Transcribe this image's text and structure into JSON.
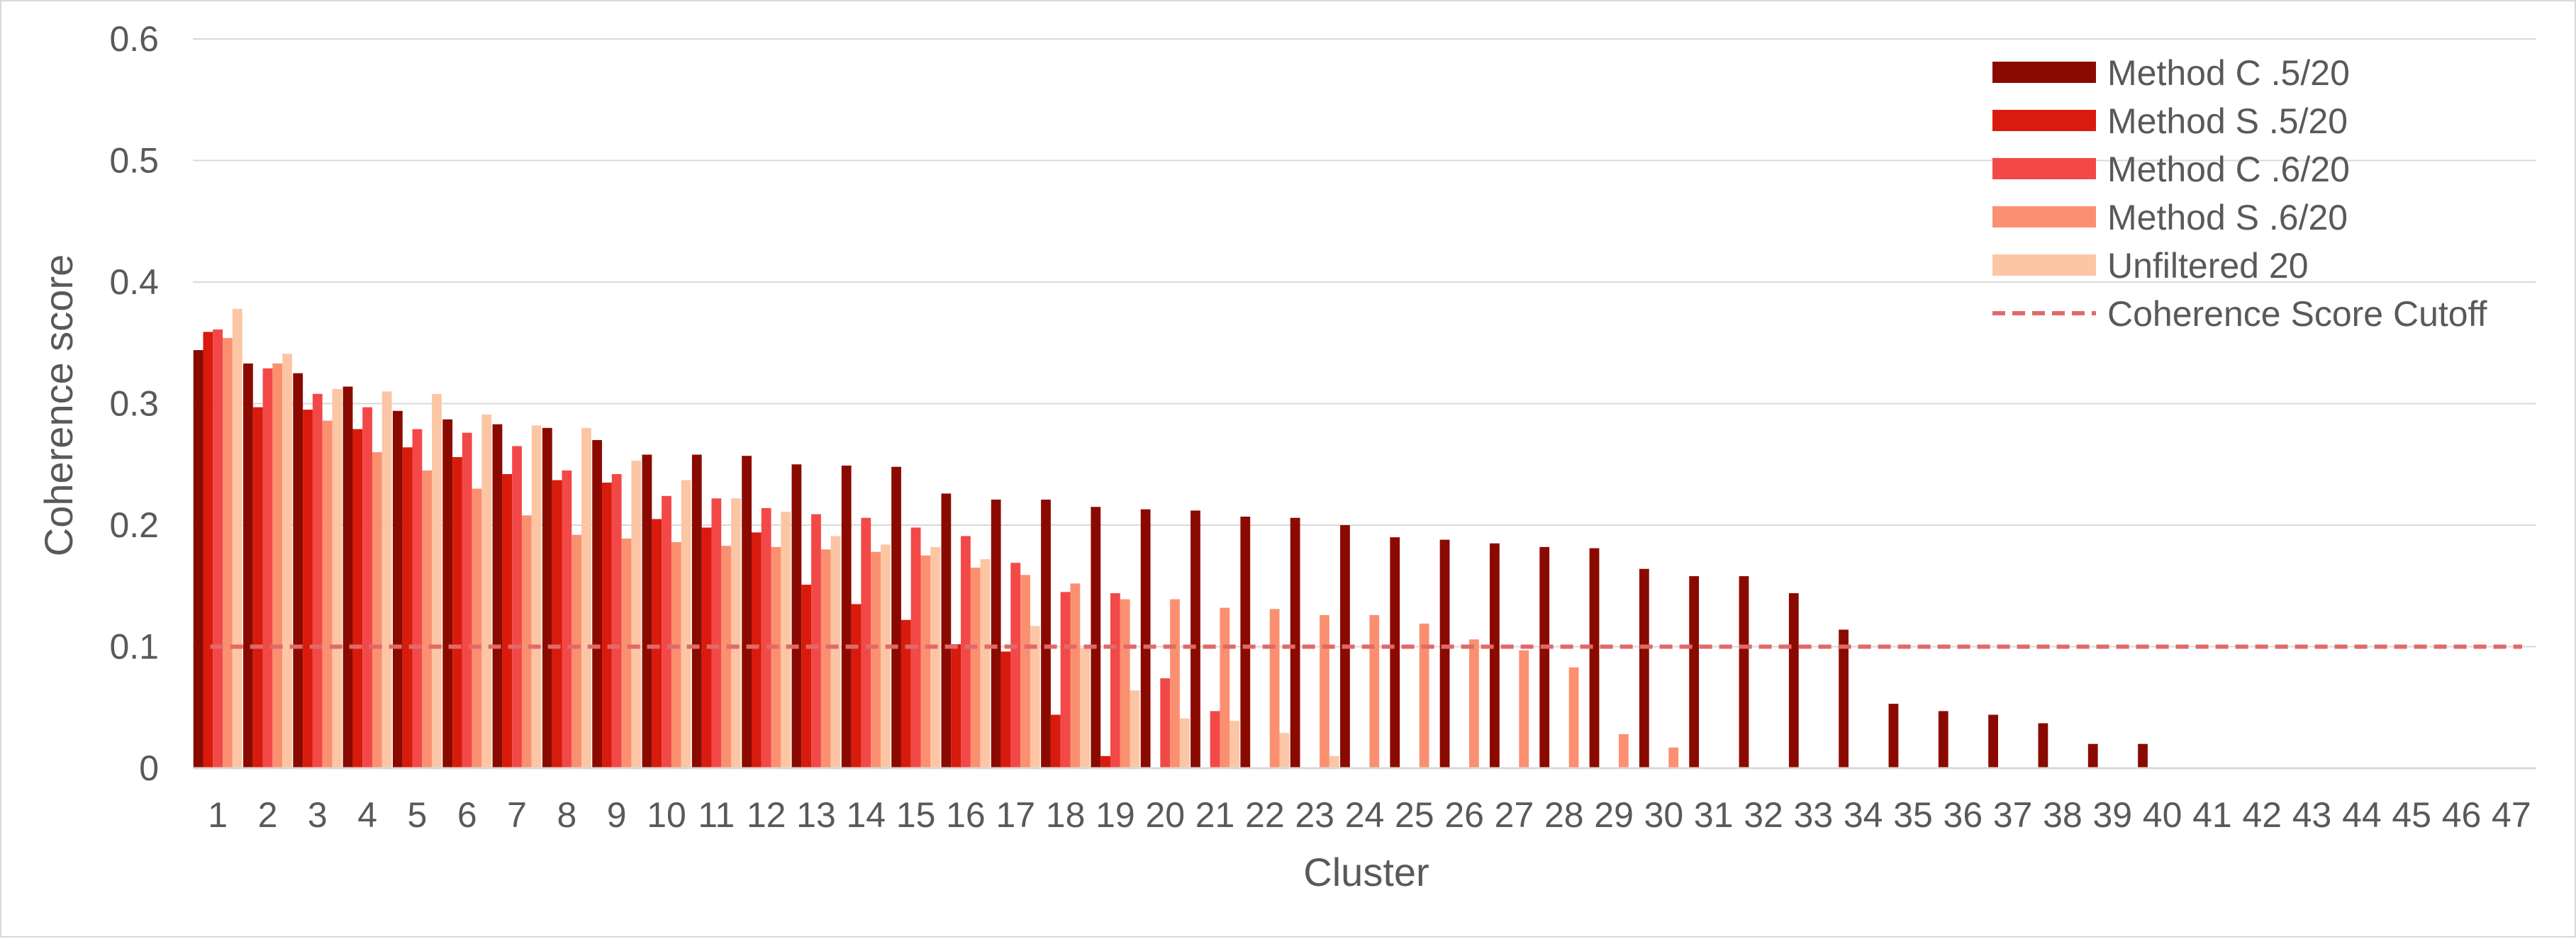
{
  "chart_data": {
    "type": "bar",
    "xlabel": "Cluster",
    "ylabel": "Coherence score",
    "ylim": [
      0,
      0.6
    ],
    "yticks": [
      "0",
      "0.1",
      "0.2",
      "0.3",
      "0.4",
      "0.5",
      "0.6"
    ],
    "grid": true,
    "legend_position": "top-right",
    "categories": [
      "1",
      "2",
      "3",
      "4",
      "5",
      "6",
      "7",
      "8",
      "9",
      "10",
      "11",
      "12",
      "13",
      "14",
      "15",
      "16",
      "17",
      "18",
      "19",
      "20",
      "21",
      "22",
      "23",
      "24",
      "25",
      "26",
      "27",
      "28",
      "29",
      "30",
      "31",
      "32",
      "33",
      "34",
      "35",
      "36",
      "37",
      "38",
      "39",
      "40",
      "41",
      "42",
      "43",
      "44",
      "45",
      "46",
      "47"
    ],
    "series": [
      {
        "name": "Method C .5/20",
        "color": "#8b0a00",
        "values": [
          0.344,
          0.333,
          0.325,
          0.314,
          0.294,
          0.287,
          0.283,
          0.28,
          0.27,
          0.258,
          0.258,
          0.257,
          0.25,
          0.249,
          0.248,
          0.226,
          0.221,
          0.221,
          0.215,
          0.213,
          0.212,
          0.207,
          0.206,
          0.2,
          0.19,
          0.188,
          0.185,
          0.182,
          0.181,
          0.164,
          0.158,
          0.158,
          0.144,
          0.114,
          0.053,
          0.047,
          0.044,
          0.037,
          0.02,
          0.02,
          0,
          0,
          0,
          0,
          0,
          0,
          0
        ]
      },
      {
        "name": "Method S .5/20",
        "color": "#d81b0c",
        "values": [
          0.359,
          0.297,
          0.295,
          0.279,
          0.264,
          0.256,
          0.242,
          0.237,
          0.235,
          0.205,
          0.198,
          0.194,
          0.151,
          0.135,
          0.122,
          0.102,
          0.096,
          0.044,
          0.01,
          0,
          0,
          0,
          0,
          0,
          0,
          0,
          0,
          0,
          0,
          0,
          0,
          0,
          0,
          0,
          0,
          0,
          0,
          0,
          0,
          0,
          0,
          0,
          0,
          0,
          0,
          0,
          0
        ]
      },
      {
        "name": "Method C .6/20",
        "color": "#f34848",
        "values": [
          0.361,
          0.329,
          0.308,
          0.297,
          0.279,
          0.276,
          0.265,
          0.245,
          0.242,
          0.224,
          0.222,
          0.214,
          0.209,
          0.206,
          0.198,
          0.191,
          0.169,
          0.145,
          0.144,
          0.074,
          0.047,
          0,
          0,
          0,
          0,
          0,
          0,
          0,
          0,
          0,
          0,
          0,
          0,
          0,
          0,
          0,
          0,
          0,
          0,
          0,
          0,
          0,
          0,
          0,
          0,
          0,
          0
        ]
      },
      {
        "name": "Method S .6/20",
        "color": "#fb9070",
        "values": [
          0.354,
          0.333,
          0.286,
          0.26,
          0.245,
          0.23,
          0.208,
          0.192,
          0.189,
          0.186,
          0.183,
          0.182,
          0.18,
          0.178,
          0.175,
          0.165,
          0.159,
          0.152,
          0.139,
          0.139,
          0.132,
          0.131,
          0.126,
          0.126,
          0.119,
          0.106,
          0.097,
          0.083,
          0.028,
          0.017,
          0,
          0,
          0,
          0,
          0,
          0,
          0,
          0,
          0,
          0,
          0,
          0,
          0,
          0,
          0,
          0,
          0
        ]
      },
      {
        "name": "Unfiltered 20",
        "color": "#fcc6a4",
        "values": [
          0.378,
          0.341,
          0.312,
          0.31,
          0.308,
          0.291,
          0.282,
          0.28,
          0.253,
          0.237,
          0.222,
          0.211,
          0.191,
          0.184,
          0.182,
          0.172,
          0.117,
          0.099,
          0.064,
          0.041,
          0.039,
          0.029,
          0.01,
          0,
          0,
          0,
          0,
          0,
          0,
          0,
          0,
          0,
          0,
          0,
          0,
          0,
          0,
          0,
          0,
          0,
          0,
          0,
          0,
          0,
          0,
          0,
          0
        ]
      }
    ],
    "cutoff": {
      "name": "Coherence Score Cutoff",
      "value": 0.1,
      "color": "#e06a6a"
    },
    "colors": {
      "grid": "#d9d9d9",
      "text": "#595959",
      "axis": "#d9d9d9"
    }
  }
}
